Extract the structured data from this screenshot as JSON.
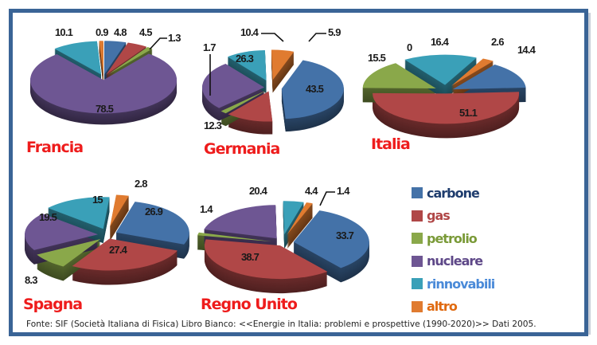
{
  "legend": {
    "items": [
      {
        "key": "carbone",
        "label": "carbone",
        "color": "#4472a8",
        "text_color": "#1f3d6e"
      },
      {
        "key": "gas",
        "label": "gas",
        "color": "#b04747",
        "text_color": "#b04747"
      },
      {
        "key": "petrolio",
        "label": "petrolio",
        "color": "#8aa84a",
        "text_color": "#7a9a38"
      },
      {
        "key": "nucleare",
        "label": "nucleare",
        "color": "#6e5693",
        "text_color": "#5e4888"
      },
      {
        "key": "rinnovabili",
        "label": "rinnovabili",
        "color": "#3aa0b8",
        "text_color": "#4a8ad8"
      },
      {
        "key": "altro",
        "label": "altro",
        "color": "#e07b30",
        "text_color": "#e06a10"
      }
    ]
  },
  "countries": {
    "francia": "Francia",
    "germania": "Germania",
    "italia": "Italia",
    "spagna": "Spagna",
    "regno_unito": "Regno Unito"
  },
  "source": "Fonte: SIF (Società Italiana di Fisica) Libro Bianco: <<Energie in Italia: problemi e prospettive (1990-2020)>> Dati 2005.",
  "chart_data": [
    {
      "type": "pie",
      "title": "Francia",
      "categories": [
        "carbone",
        "gas",
        "petrolio",
        "nucleare",
        "rinnovabili",
        "altro"
      ],
      "values": [
        4.8,
        4.5,
        1.3,
        78.5,
        10.1,
        0.9
      ]
    },
    {
      "type": "pie",
      "title": "Germania",
      "categories": [
        "carbone",
        "gas",
        "petrolio",
        "nucleare",
        "rinnovabili",
        "altro"
      ],
      "values": [
        43.5,
        12.3,
        1.7,
        26.3,
        10.4,
        5.9
      ]
    },
    {
      "type": "pie",
      "title": "Italia",
      "categories": [
        "carbone",
        "gas",
        "petrolio",
        "nucleare",
        "rinnovabili",
        "altro"
      ],
      "values": [
        14.4,
        51.1,
        15.5,
        0,
        16.4,
        2.6
      ]
    },
    {
      "type": "pie",
      "title": "Spagna",
      "categories": [
        "carbone",
        "gas",
        "petrolio",
        "nucleare",
        "rinnovabili",
        "altro"
      ],
      "values": [
        26.9,
        27.4,
        8.3,
        19.5,
        15,
        2.8
      ]
    },
    {
      "type": "pie",
      "title": "Regno Unito",
      "categories": [
        "carbone",
        "gas",
        "petrolio",
        "nucleare",
        "rinnovabili",
        "altro"
      ],
      "values": [
        33.7,
        38.7,
        1.4,
        20.4,
        4.4,
        1.4
      ]
    }
  ],
  "labels": {
    "francia": [
      "4.8",
      "4.5",
      "1.3",
      "78.5",
      "10.1",
      "0.9"
    ],
    "germania": [
      "43.5",
      "12.3",
      "1.7",
      "26.3",
      "10.4",
      "5.9"
    ],
    "italia": [
      "14.4",
      "51.1",
      "15.5",
      "0",
      "16.4",
      "2.6"
    ],
    "spagna": [
      "26.9",
      "27.4",
      "8.3",
      "19.5",
      "15",
      "2.8"
    ],
    "regno_unito": [
      "33.7",
      "38.7",
      "1.4",
      "20.4",
      "4.4",
      "1.4"
    ]
  }
}
